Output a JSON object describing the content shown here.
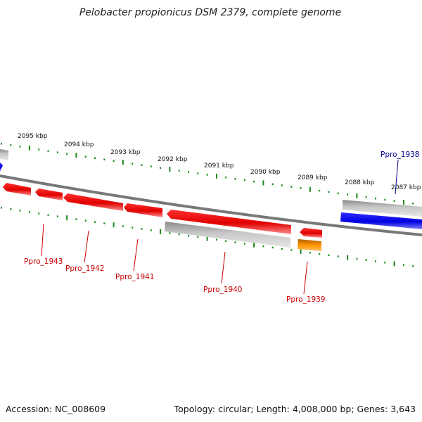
{
  "title": "Pelobacter propionicus DSM 2379, complete genome",
  "footer": {
    "accession": "Accession: NC_008609",
    "summary": "Topology: circular; Length: 4,008,000 bp; Genes: 3,643"
  },
  "colors": {
    "forward_gene": "#0000ff",
    "reverse_gene": "#ff0000",
    "highlight_gene": "#ff8c00",
    "feature_gray": "#b4b4b4",
    "backbone": "#787878",
    "tick_green": "#1a8a1a",
    "forward_label": "#00008b",
    "reverse_label": "#cc0000"
  },
  "kbp_labels": [
    "2095 kbp",
    "2094 kbp",
    "2093 kbp",
    "2092 kbp",
    "2091 kbp",
    "2090 kbp",
    "2089 kbp",
    "2088 kbp",
    "2087 kbp"
  ],
  "genes": [
    {
      "name": "Ppro_1938",
      "strand": "forward"
    },
    {
      "name": "Ppro_1939",
      "strand": "reverse"
    },
    {
      "name": "Ppro_1940",
      "strand": "reverse"
    },
    {
      "name": "Ppro_1941",
      "strand": "reverse"
    },
    {
      "name": "Ppro_1942",
      "strand": "reverse"
    },
    {
      "name": "Ppro_1943",
      "strand": "reverse"
    }
  ]
}
